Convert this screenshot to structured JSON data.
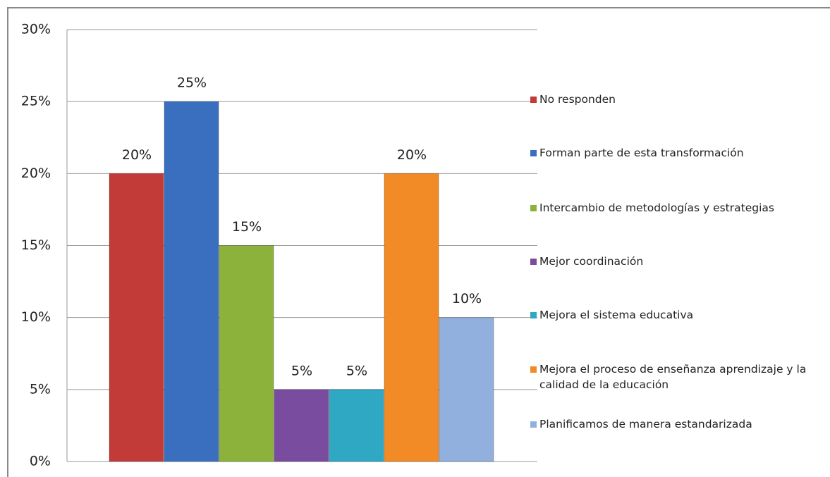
{
  "chart_data": {
    "type": "bar",
    "categories": [
      null
    ],
    "series": [
      {
        "name": "No responden",
        "color": "#c23b39",
        "values": [
          20
        ],
        "value_labels": [
          "20%"
        ]
      },
      {
        "name": "Forman parte de esta transformación",
        "color": "#3a6fbf",
        "values": [
          25
        ],
        "value_labels": [
          "25%"
        ]
      },
      {
        "name": "Intercambio de metodologías y estrategias",
        "color": "#8cb23c",
        "values": [
          15
        ],
        "value_labels": [
          "15%"
        ]
      },
      {
        "name": "Mejor coordinación",
        "color": "#7a4c9f",
        "values": [
          5
        ],
        "value_labels": [
          "5%"
        ]
      },
      {
        "name": "Mejora el sistema educativa",
        "color": "#2ea8c3",
        "values": [
          5
        ],
        "value_labels": [
          "5%"
        ]
      },
      {
        "name": "Mejora el proceso de enseñanza aprendizaje y la calidad de la educación",
        "color": "#f28a25",
        "values": [
          20
        ],
        "value_labels": [
          "20%"
        ]
      },
      {
        "name": "Planificamos de manera estandarizada",
        "color": "#92b0dd",
        "values": [
          10
        ],
        "value_labels": [
          "10%"
        ]
      }
    ],
    "ylim": [
      0,
      30
    ],
    "yticks": [
      {
        "value": 0,
        "label": "0%"
      },
      {
        "value": 5,
        "label": "5%"
      },
      {
        "value": 10,
        "label": "10%"
      },
      {
        "value": 15,
        "label": "15%"
      },
      {
        "value": 20,
        "label": "20%"
      },
      {
        "value": 25,
        "label": "25%"
      },
      {
        "value": 30,
        "label": "30%"
      }
    ],
    "grid": true,
    "legend": "right"
  }
}
